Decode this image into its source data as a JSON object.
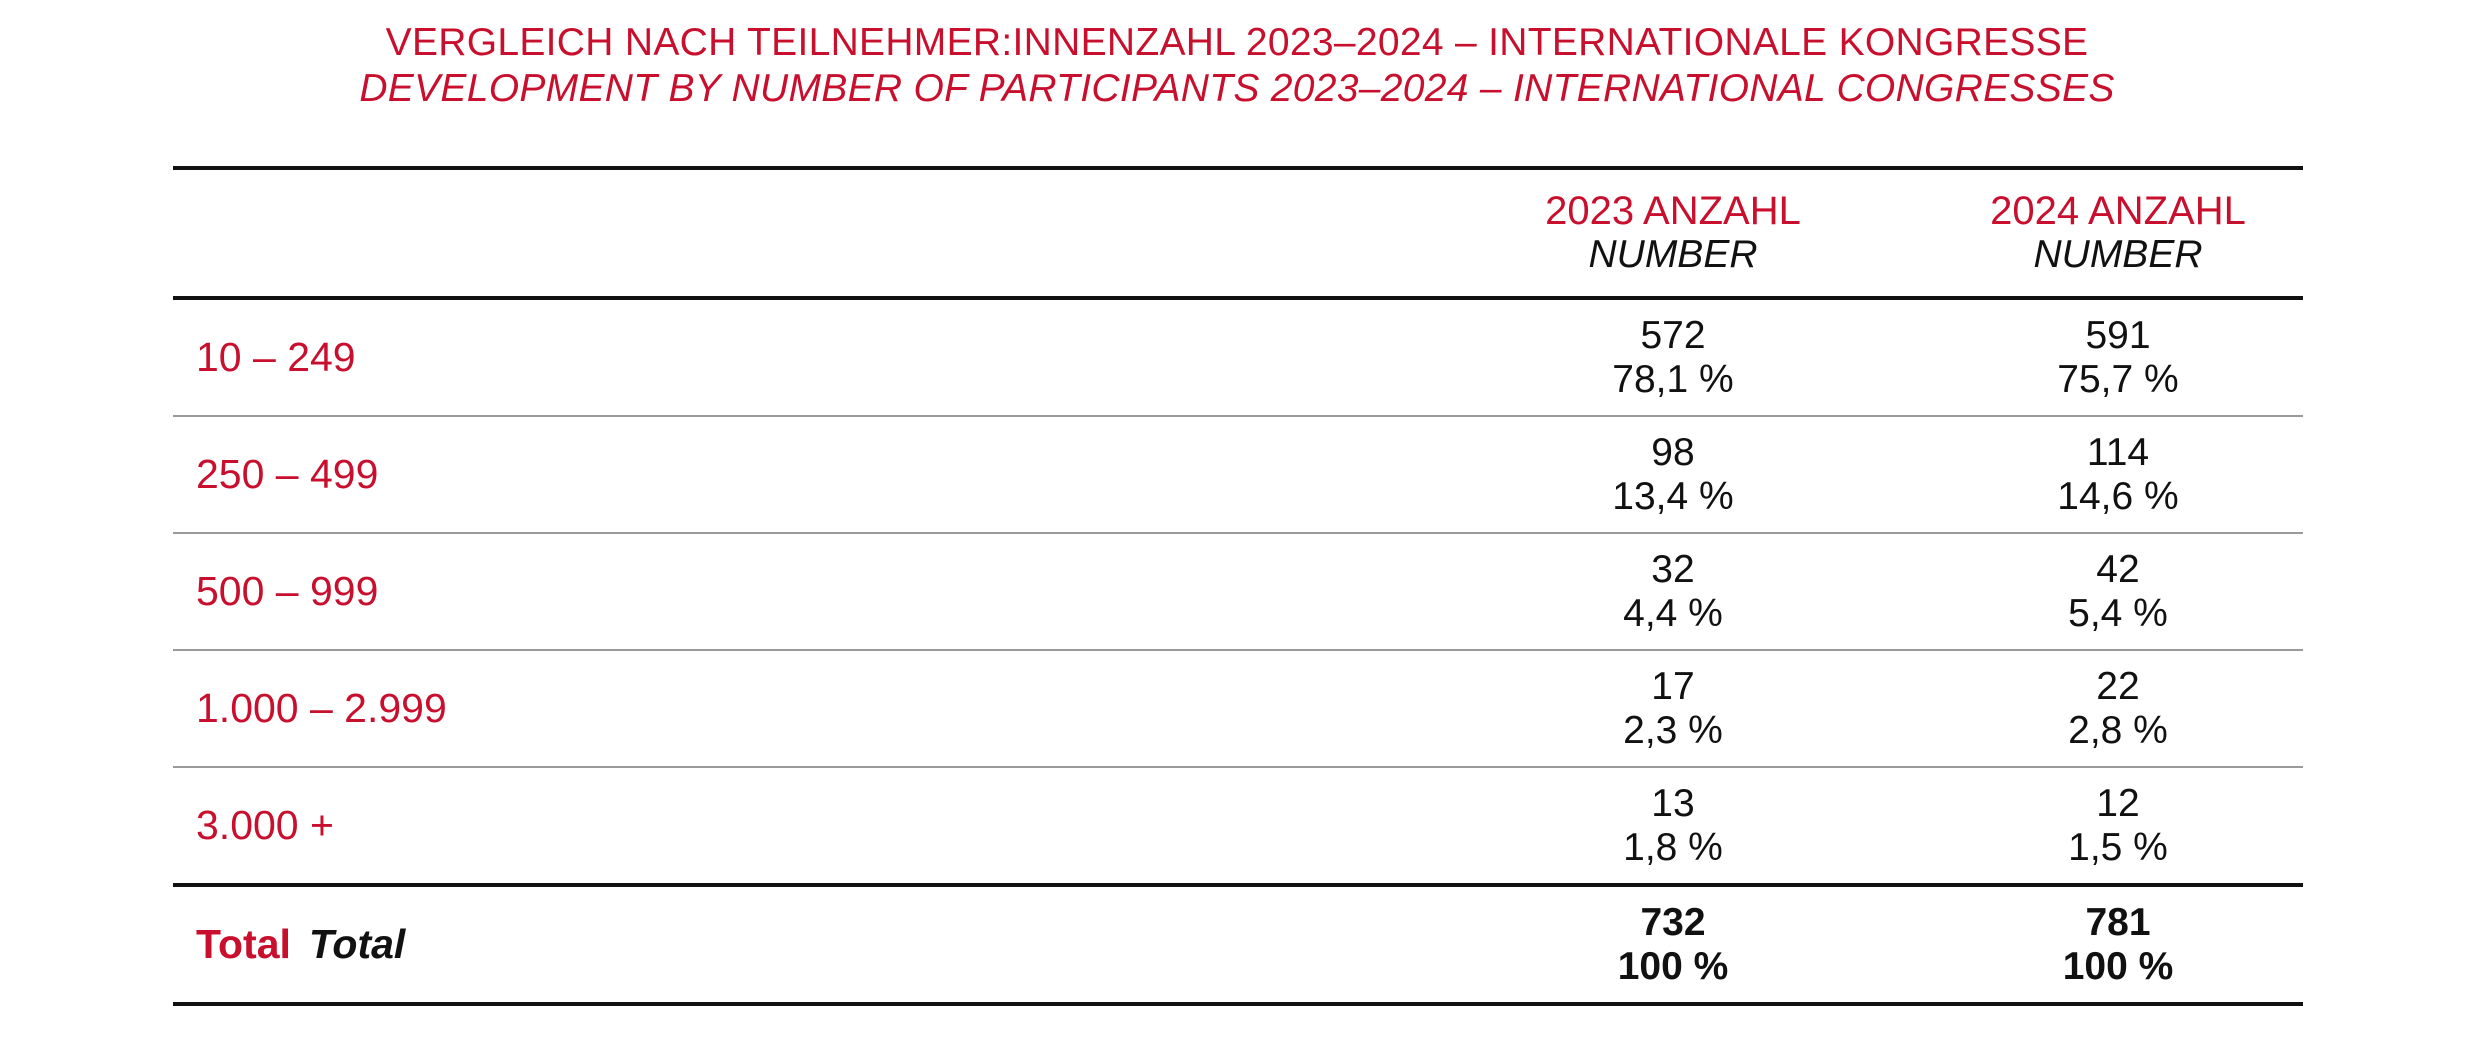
{
  "title": {
    "de": "VERGLEICH NACH TEILNEHMER:INNENZAHL 2023–2024 – INTERNATIONALE KONGRESSE",
    "en": "DEVELOPMENT BY NUMBER OF PARTICIPANTS 2023–2024 – INTERNATIONAL CONGRESSES"
  },
  "table": {
    "columns": [
      {
        "de": "2023 ANZAHL",
        "en": "NUMBER"
      },
      {
        "de": "2024 ANZAHL",
        "en": "NUMBER"
      }
    ],
    "rows": [
      {
        "label": "10 – 249",
        "v2023": "572",
        "p2023": "78,1 %",
        "v2024": "591",
        "p2024": "75,7 %"
      },
      {
        "label": "250 – 499",
        "v2023": "98",
        "p2023": "13,4 %",
        "v2024": "114",
        "p2024": "14,6 %"
      },
      {
        "label": "500 – 999",
        "v2023": "32",
        "p2023": "4,4 %",
        "v2024": "42",
        "p2024": "5,4 %"
      },
      {
        "label": "1.000 – 2.999",
        "v2023": "17",
        "p2023": "2,3 %",
        "v2024": "22",
        "p2024": "2,8 %"
      },
      {
        "label": "3.000 +",
        "v2023": "13",
        "p2023": "1,8 %",
        "v2024": "12",
        "p2024": "1,5 %"
      }
    ],
    "total": {
      "label_de": "Total",
      "label_en": "Total",
      "v2023": "732",
      "p2023": "100 %",
      "v2024": "781",
      "p2024": "100 %"
    }
  }
}
